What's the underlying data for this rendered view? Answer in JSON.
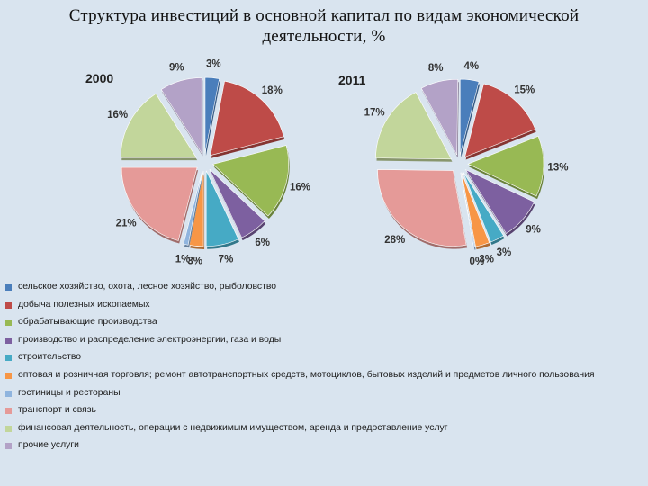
{
  "page": {
    "title_line1": "Структура инвестиций в основной капитал по видам экономической",
    "title_line2": "деятельности, %"
  },
  "chart_data": [
    {
      "type": "pie",
      "title": "2000",
      "categories": [
        "сельское хозяйство, охота, лесное хозяйство, рыболовство",
        "добыча полезных ископаемых",
        "обрабатывающие производства",
        "производство и распределение электроэнергии, газа и воды",
        "строительство",
        "оптовая и розничная торговля; ремонт автотранспортных средств, мотоциклов, бытовых изделий и предметов личного пользования",
        "гостиницы и рестораны",
        "транспорт и связь",
        "финансовая деятельность, операции с недвижимым имуществом, аренда и предоставление услуг",
        "прочие услуги"
      ],
      "values": [
        3,
        18,
        16,
        6,
        7,
        3,
        1,
        21,
        16,
        9
      ],
      "labels": [
        "3%",
        "18%",
        "16%",
        "6%",
        "7%",
        "3%",
        "1%",
        "21%",
        "16%",
        "9%"
      ]
    },
    {
      "type": "pie",
      "title": "2011",
      "categories": [
        "сельское хозяйство, охота, лесное хозяйство, рыболовство",
        "добыча полезных ископаемых",
        "обрабатывающие производства",
        "производство и распределение электроэнергии, газа и воды",
        "строительство",
        "оптовая и розничная торговля; ремонт автотранспортных средств, мотоциклов, бытовых изделий и предметов личного пользования",
        "гостиницы и рестораны",
        "транспорт и связь",
        "финансовая деятельность, операции с недвижимым имуществом, аренда и предоставление услуг",
        "прочие услуги"
      ],
      "values": [
        4,
        15,
        13,
        9,
        3,
        3,
        0,
        28,
        17,
        8
      ],
      "labels": [
        "4%",
        "15%",
        "13%",
        "9%",
        "3%",
        "3%",
        "0%",
        "28%",
        "17%",
        "8%"
      ]
    }
  ],
  "legend": {
    "placement": "bottom",
    "items": [
      "сельское хозяйство, охота, лесное хозяйство, рыболовство",
      "добыча полезных ископаемых",
      "обрабатывающие производства",
      "производство и распределение электроэнергии, газа и воды",
      "строительство",
      "оптовая и розничная торговля; ремонт автотранспортных средств, мотоциклов, бытовых изделий и предметов личного пользования",
      "гостиницы и рестораны",
      "транспорт и связь",
      "финансовая деятельность, операции с недвижимым имуществом, аренда и предоставление услуг",
      "прочие услуги"
    ]
  },
  "colors": [
    "#4a7ebb",
    "#be4b48",
    "#98b954",
    "#7d60a0",
    "#46aac5",
    "#f79646",
    "#8fb4de",
    "#e59a98",
    "#c2d69b",
    "#b3a2c7"
  ]
}
